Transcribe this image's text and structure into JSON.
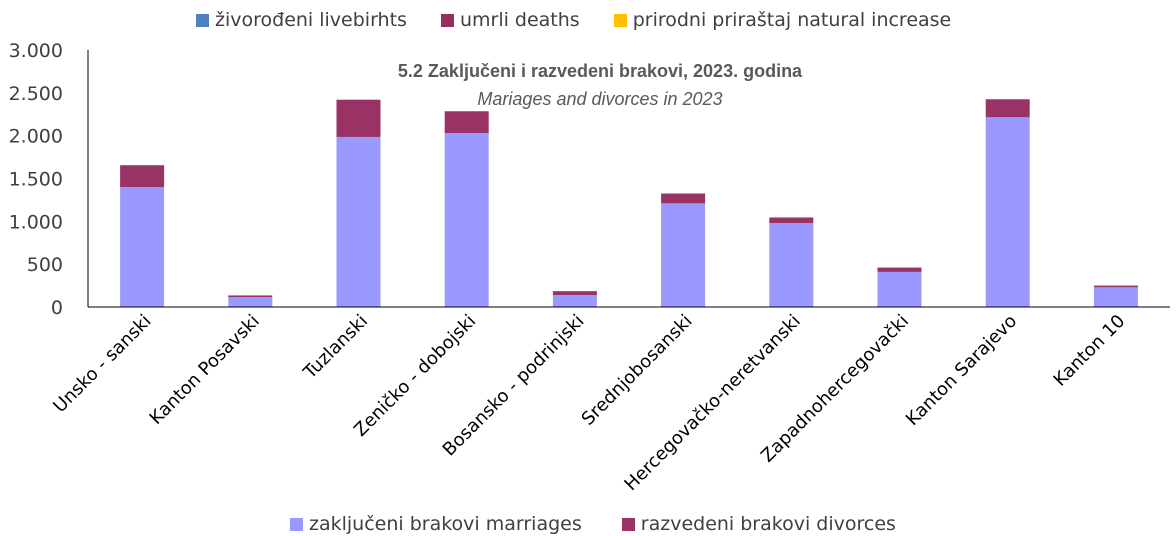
{
  "legend_top": [
    {
      "label": "živorođeni livebirhts",
      "color": "#4f81bd"
    },
    {
      "label": "umrli deaths",
      "color": "#9b2d5c"
    },
    {
      "label": "prirodni priraštaj natural increase",
      "color": "#ffc000"
    }
  ],
  "legend_bottom": [
    {
      "label": "zaključeni brakovi marriages",
      "color": "#9999ff"
    },
    {
      "label": "razvedeni brakovi divorces",
      "color": "#993366"
    }
  ],
  "chart_data": {
    "type": "bar",
    "stacked": true,
    "title": "5.2 Zaključeni i razvedeni brakovi, 2023.  godina",
    "subtitle": "Mariages and divorces in 2023",
    "categories": [
      "Unsko - sanski",
      "Kanton Posavski",
      "Tuzlanski",
      "Zeničko - dobojski",
      "Bosansko - podrinjski",
      "Srednjobosanski",
      "Hercegovačko-neretvanski",
      "Zapadnohercegovački",
      "Kanton Sarajevo",
      "Kanton 10"
    ],
    "series": [
      {
        "name": "zaključeni brakovi marriages",
        "color": "#9999ff",
        "values": [
          1400,
          115,
          1985,
          2030,
          140,
          1210,
          980,
          410,
          2215,
          230
        ]
      },
      {
        "name": "razvedeni brakovi divorces",
        "color": "#993366",
        "values": [
          255,
          20,
          435,
          255,
          45,
          115,
          65,
          50,
          210,
          20
        ]
      }
    ],
    "ylim": [
      0,
      3000
    ],
    "yticks": [
      0,
      500,
      1000,
      1500,
      2000,
      2500,
      3000
    ],
    "ytick_labels": [
      "0",
      "500",
      "1.000",
      "1.500",
      "2.000",
      "2.500",
      "3.000"
    ],
    "grid": false
  }
}
